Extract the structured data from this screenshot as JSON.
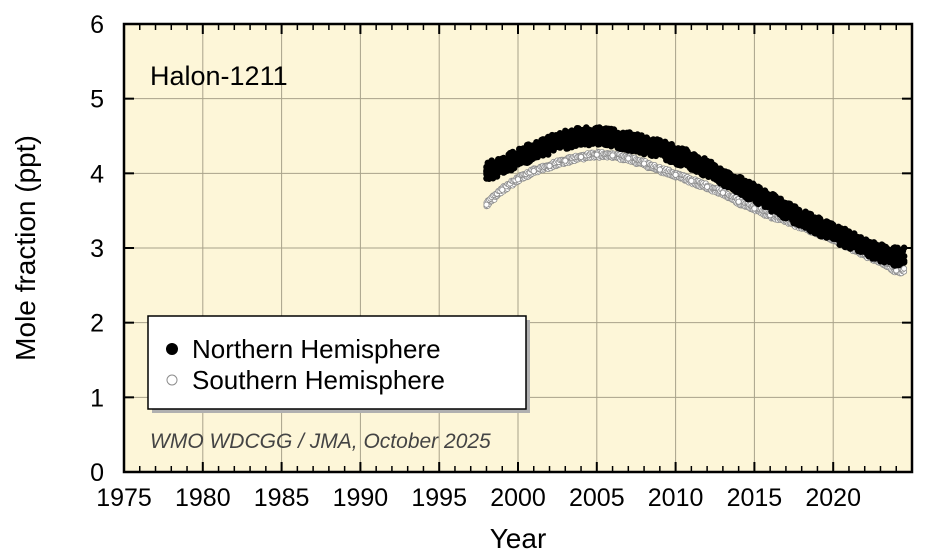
{
  "chart_data": {
    "type": "scatter",
    "title": "Halon-1211",
    "xlabel": "Year",
    "ylabel": "Mole fraction (ppt)",
    "xlim": [
      1975,
      2025
    ],
    "ylim": [
      0,
      6
    ],
    "xticks": [
      1975,
      1980,
      1985,
      1990,
      1995,
      2000,
      2005,
      2010,
      2015,
      2020
    ],
    "xtick_labels": [
      "1975",
      "1980",
      "1985",
      "1990",
      "1995",
      "2000",
      "2005",
      "2010",
      "2015",
      "2020"
    ],
    "yticks": [
      0,
      1,
      2,
      3,
      4,
      5,
      6
    ],
    "ytick_labels": [
      "0",
      "1",
      "2",
      "3",
      "4",
      "5",
      "6"
    ],
    "x_minor_tick_step": 1,
    "grid": true,
    "legend_position": "bottom-left",
    "annotation": "WMO WDCGG / JMA, October 2025",
    "colors": {
      "plot_background": "#fdf6d8",
      "grid": "#a8a28a",
      "north_fill": "#000000",
      "south_fill": "#ffffff",
      "south_stroke": "#8c8c8c"
    },
    "series": [
      {
        "name": "Northern Hemisphere",
        "marker": "filled-circle",
        "x": [
          1998,
          1999,
          2000,
          2001,
          2002,
          2003,
          2004,
          2005,
          2006,
          2007,
          2008,
          2009,
          2010,
          2011,
          2012,
          2013,
          2014,
          2015,
          2016,
          2017,
          2018,
          2019,
          2020,
          2021,
          2022,
          2023,
          2024
        ],
        "values": [
          4.02,
          4.1,
          4.2,
          4.3,
          4.38,
          4.45,
          4.5,
          4.5,
          4.47,
          4.43,
          4.38,
          4.33,
          4.25,
          4.17,
          4.07,
          3.96,
          3.84,
          3.73,
          3.62,
          3.51,
          3.4,
          3.3,
          3.2,
          3.11,
          3.02,
          2.94,
          2.88
        ]
      },
      {
        "name": "Southern Hemisphere",
        "marker": "open-circle",
        "x": [
          1998,
          1999,
          2000,
          2001,
          2002,
          2003,
          2004,
          2005,
          2006,
          2007,
          2008,
          2009,
          2010,
          2011,
          2012,
          2013,
          2014,
          2015,
          2016,
          2017,
          2018,
          2019,
          2020,
          2021,
          2022,
          2023,
          2024
        ],
        "values": [
          3.58,
          3.78,
          3.92,
          4.03,
          4.1,
          4.17,
          4.22,
          4.25,
          4.24,
          4.2,
          4.13,
          4.05,
          3.98,
          3.9,
          3.82,
          3.74,
          3.62,
          3.53,
          3.44,
          3.37,
          3.29,
          3.21,
          3.13,
          3.02,
          2.92,
          2.82,
          2.7
        ]
      }
    ]
  }
}
